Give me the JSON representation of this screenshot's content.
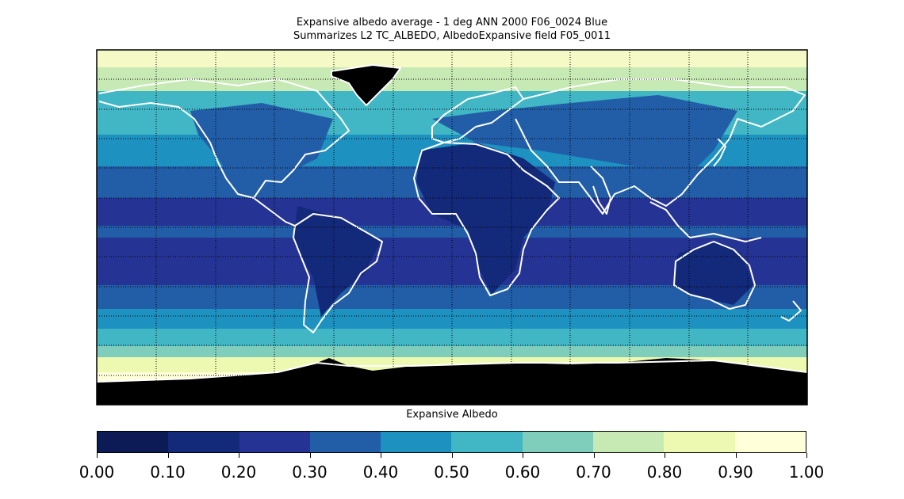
{
  "header": {
    "title_line1": "Expansive albedo average - 1 deg ANN 2000 F06_0024 Blue",
    "title_line2": "Summarizes L2 TC_ALBEDO, AlbedoExpansive field F05_0011"
  },
  "colorbar": {
    "label": "Expansive Albedo",
    "ticks": [
      "0.00",
      "0.10",
      "0.20",
      "0.30",
      "0.40",
      "0.50",
      "0.60",
      "0.70",
      "0.80",
      "0.90",
      "1.00"
    ],
    "colors": [
      "#0c1b55",
      "#13297a",
      "#253494",
      "#225ea8",
      "#1d91c0",
      "#41b6c4",
      "#7fcdbb",
      "#c7e9b4",
      "#edf8b1",
      "#ffffd9"
    ]
  },
  "map": {
    "projection": "equirectangular",
    "grid": true,
    "land_outline_color": "#ffffff",
    "missing_color": "#000000"
  }
}
